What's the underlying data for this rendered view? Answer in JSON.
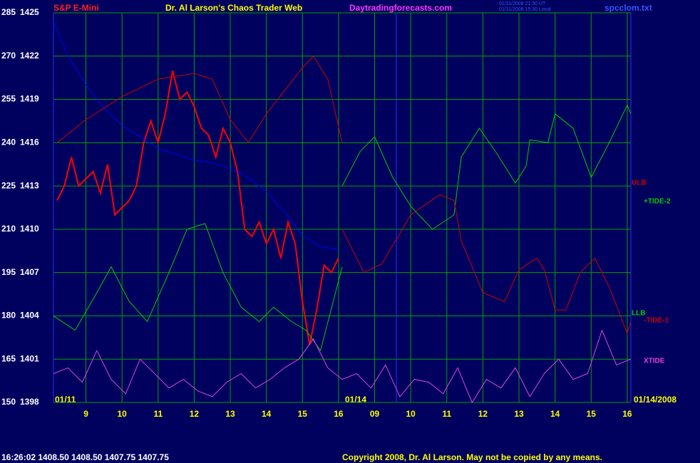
{
  "chart_data": {
    "type": "line",
    "symbol": "S&P E-Mini",
    "title": "Dr. Al Larson's Chaos Trader Web",
    "website": "Daytradingforecasts.com",
    "timestamps": [
      "01/11/2008 21:30 UT",
      "01/11/2008 15:30 Local"
    ],
    "file": "spcclom.txt",
    "status": "16:26:02  1408.50  1408.50  1407.75  1407.75",
    "copyright": "Copyright 2008, Dr. Al Larson. May not be copied by any means.",
    "date_labels": [
      "01/11",
      "01/14",
      "01/14/2008"
    ],
    "grid": true,
    "grid_color": "#00a000",
    "ylim": [
      150,
      285
    ],
    "yticks": [
      150,
      165,
      180,
      195,
      210,
      225,
      240,
      255,
      270,
      285
    ],
    "y2lim": [
      1398,
      1425
    ],
    "y2ticks": [
      1398,
      1401,
      1404,
      1407,
      1410,
      1413,
      1416,
      1419,
      1422,
      1425
    ],
    "xlim": [
      8.1,
      24.1
    ],
    "xticks": [
      9,
      10,
      11,
      12,
      13,
      14,
      15,
      16,
      {
        "value": 17,
        "label": "09"
      },
      {
        "value": 18,
        "label": "10"
      },
      {
        "value": 19,
        "label": "11"
      },
      {
        "value": 20,
        "label": "12"
      },
      {
        "value": 21,
        "label": "13"
      },
      {
        "value": 22,
        "label": "14"
      },
      {
        "value": 23,
        "label": "15"
      },
      {
        "value": 24,
        "label": "16"
      }
    ],
    "series": [
      {
        "color": "#ff0000",
        "axis": "y2",
        "x": [
          8.2,
          8.4,
          8.6,
          8.8,
          9.0,
          9.2,
          9.4,
          9.6,
          9.8,
          10.0,
          10.2,
          10.4,
          10.6,
          10.8,
          11.0,
          11.2,
          11.4,
          11.6,
          11.8,
          12.0,
          12.2,
          12.4,
          12.6,
          12.8,
          13.0,
          13.2,
          13.4,
          13.6,
          13.8,
          14.0,
          14.2,
          14.4,
          14.6,
          14.8,
          15.0,
          15.2,
          15.4,
          15.6,
          15.8,
          16.0
        ],
        "values": [
          1412,
          1413,
          1415,
          1413,
          1413.5,
          1414,
          1412.5,
          1414.5,
          1411,
          1411.5,
          1412,
          1413,
          1416,
          1417.5,
          1416,
          1418,
          1421,
          1419,
          1419.5,
          1418.5,
          1417,
          1416.5,
          1415,
          1417,
          1416,
          1414,
          1410,
          1409.5,
          1410.5,
          1409,
          1410,
          1408,
          1410.5,
          1409,
          1405,
          1402,
          1404.5,
          1407.5,
          1407,
          1408
        ]
      },
      {
        "color": "#0000ff",
        "x": [
          8.1,
          8.5,
          9,
          9.5,
          10,
          10.5,
          11,
          11.5,
          12,
          12.5,
          13,
          13.5,
          14,
          14.5,
          15,
          15.5,
          16
        ],
        "values": [
          282,
          270,
          260,
          252,
          246,
          242,
          238,
          236,
          234,
          233,
          231,
          228,
          223,
          216,
          208,
          204,
          203
        ]
      },
      {
        "name": "ULB",
        "color": "#cc0000",
        "x": [
          8.2,
          9,
          10,
          11,
          12,
          12.5,
          13,
          13.5,
          14,
          14.5,
          15,
          15.3,
          15.7,
          16.1
        ],
        "values": [
          240,
          248,
          256,
          262,
          264,
          262,
          248,
          240,
          250,
          258,
          266,
          270,
          262,
          240
        ]
      },
      {
        "name": "LLB",
        "color": "#00cc00",
        "x": [
          8.1,
          8.7,
          9.3,
          9.7,
          10.2,
          10.7,
          11.3,
          11.8,
          12.3,
          12.8,
          13.3,
          13.8,
          14.2,
          14.7,
          15.1,
          15.5,
          16.1
        ],
        "values": [
          180,
          175,
          188,
          197,
          185,
          178,
          195,
          210,
          212,
          195,
          183,
          178,
          183,
          178,
          175,
          168,
          197
        ]
      },
      {
        "name": "+TIDE-2",
        "color": "#00cc00",
        "x": [
          16.1,
          16.6,
          17.0,
          17.5,
          18.0,
          18.6,
          19.2,
          19.4,
          19.9,
          20.4,
          20.9,
          21.2,
          21.3,
          21.8,
          22.0,
          22.5,
          23.0,
          23.5,
          24.0,
          24.1
        ],
        "values": [
          225,
          237,
          242,
          228,
          218,
          210,
          215,
          235,
          245,
          236,
          226,
          232,
          241,
          240,
          250,
          245,
          228,
          240,
          253,
          250
        ]
      },
      {
        "name": "-TIDE-1",
        "color": "#cc0000",
        "x": [
          16.1,
          16.7,
          17.2,
          18.0,
          18.8,
          19.2,
          19.4,
          20.0,
          20.6,
          21.0,
          21.5,
          21.7,
          22.0,
          22.3,
          22.7,
          23.1,
          23.5,
          24.0,
          24.1
        ],
        "values": [
          210,
          195,
          198,
          215,
          222,
          220,
          206,
          188,
          185,
          196,
          200,
          196,
          182,
          182,
          195,
          200,
          190,
          174,
          178
        ]
      },
      {
        "name": "XTIDE",
        "color": "#dd44dd",
        "x": [
          8.1,
          8.5,
          8.9,
          9.3,
          9.7,
          10.1,
          10.5,
          10.9,
          11.3,
          11.7,
          12.1,
          12.5,
          12.9,
          13.3,
          13.7,
          14.1,
          14.5,
          14.9,
          15.3,
          15.7,
          16.1,
          16.5,
          16.9,
          17.3,
          17.7,
          18.1,
          18.5,
          18.9,
          19.3,
          19.7,
          20.1,
          20.5,
          20.9,
          21.3,
          21.7,
          22.1,
          22.5,
          22.9,
          23.3,
          23.7,
          24.1
        ],
        "values": [
          160,
          162,
          157,
          168,
          158,
          153,
          165,
          160,
          155,
          158,
          154,
          152,
          157,
          160,
          155,
          158,
          162,
          165,
          172,
          162,
          158,
          160,
          155,
          163,
          152,
          158,
          157,
          153,
          162,
          150,
          158,
          155,
          162,
          152,
          160,
          165,
          158,
          160,
          175,
          163,
          165
        ]
      }
    ]
  }
}
